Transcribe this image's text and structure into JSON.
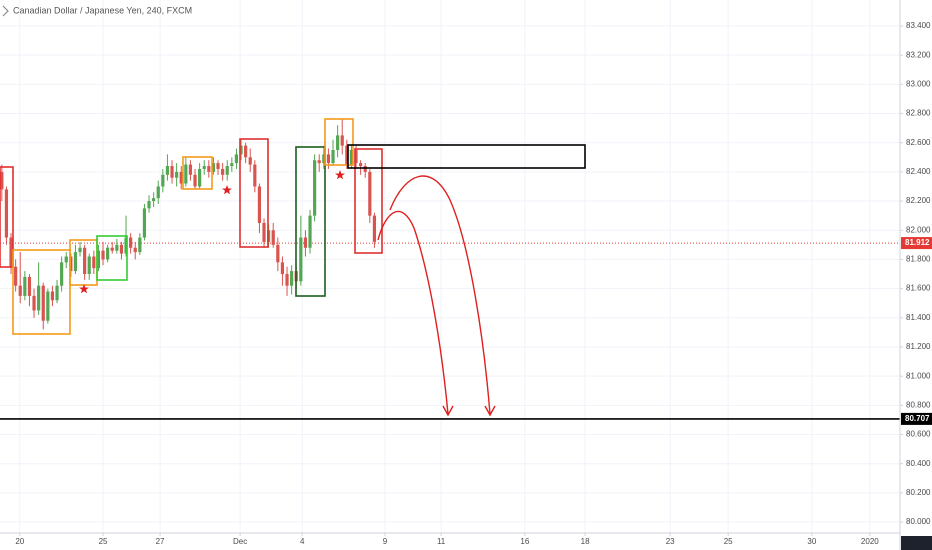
{
  "chart_data": {
    "type": "candlestick",
    "title": "Canadian Dollar / Japanese Yen, 240, FXCM",
    "up_color": "#53a653",
    "down_color": "#d9534f",
    "x": [
      0,
      1,
      2,
      3,
      4,
      5,
      6,
      7,
      8,
      9,
      10,
      11,
      12,
      13,
      14,
      15,
      16,
      17,
      18,
      19,
      20,
      21,
      22,
      23,
      24,
      25,
      26,
      27,
      28,
      29,
      30,
      31,
      32,
      33,
      34,
      35,
      36,
      37,
      38,
      39,
      40,
      41,
      42,
      43,
      44,
      45,
      46,
      47,
      48,
      49,
      50,
      51,
      52,
      53,
      54,
      55,
      56,
      57,
      58,
      59,
      60,
      61,
      62,
      63,
      64,
      65,
      66,
      67,
      68,
      69,
      70,
      71,
      72,
      73,
      74,
      75,
      76,
      77,
      78,
      79,
      80,
      81
    ],
    "open": [
      82.4,
      82.28,
      81.95,
      81.75,
      81.62,
      81.55,
      81.68,
      81.55,
      81.45,
      81.62,
      81.38,
      81.58,
      81.52,
      81.62,
      81.78,
      81.82,
      81.72,
      81.85,
      81.88,
      81.7,
      81.82,
      81.74,
      81.86,
      81.8,
      81.88,
      81.86,
      81.9,
      81.84,
      81.95,
      81.88,
      81.85,
      81.95,
      82.15,
      82.2,
      82.22,
      82.3,
      82.38,
      82.44,
      82.36,
      82.4,
      82.32,
      82.45,
      82.38,
      82.3,
      82.42,
      82.44,
      82.4,
      82.46,
      82.42,
      82.38,
      82.44,
      82.46,
      82.52,
      82.58,
      82.5,
      82.45,
      82.3,
      82.05,
      81.92,
      82.0,
      81.9,
      81.78,
      81.7,
      81.62,
      81.72,
      81.65,
      81.95,
      81.88,
      82.1,
      82.48,
      82.46,
      82.52,
      82.46,
      82.55,
      82.65,
      82.58,
      82.45,
      82.55,
      82.46,
      82.44,
      82.4,
      82.1
    ],
    "high": [
      82.45,
      82.3,
      81.98,
      81.8,
      81.85,
      81.72,
      81.7,
      81.6,
      81.78,
      81.64,
      81.6,
      81.62,
      81.66,
      81.82,
      81.85,
      81.84,
      81.9,
      81.92,
      81.9,
      81.84,
      81.86,
      81.9,
      81.92,
      81.9,
      81.92,
      81.94,
      81.92,
      82.1,
      81.98,
      81.92,
      81.98,
      82.18,
      82.24,
      82.26,
      82.34,
      82.42,
      82.52,
      82.48,
      82.46,
      82.44,
      82.5,
      82.48,
      82.42,
      82.46,
      82.48,
      82.48,
      82.5,
      82.48,
      82.46,
      82.48,
      82.5,
      82.56,
      82.62,
      82.6,
      82.56,
      82.48,
      82.32,
      82.08,
      82.04,
      82.05,
      81.95,
      81.82,
      81.75,
      81.76,
      81.75,
      82.1,
      82.0,
      82.14,
      82.52,
      82.52,
      82.58,
      82.56,
      82.62,
      82.72,
      82.76,
      82.62,
      82.58,
      82.58,
      82.48,
      82.46,
      82.42,
      82.12
    ],
    "low": [
      82.2,
      81.9,
      81.7,
      81.58,
      81.5,
      81.52,
      81.48,
      81.4,
      81.42,
      81.32,
      81.36,
      81.48,
      81.5,
      81.58,
      81.74,
      81.68,
      81.7,
      81.82,
      81.66,
      81.66,
      81.7,
      81.72,
      81.76,
      81.78,
      81.84,
      81.84,
      81.8,
      81.82,
      81.84,
      81.8,
      81.83,
      81.93,
      82.12,
      82.16,
      82.18,
      82.26,
      82.34,
      82.32,
      82.3,
      82.28,
      82.3,
      82.34,
      82.28,
      82.28,
      82.38,
      82.36,
      82.38,
      82.38,
      82.34,
      82.34,
      82.4,
      82.42,
      82.48,
      82.46,
      82.4,
      82.26,
      81.98,
      81.88,
      81.88,
      81.88,
      81.72,
      81.62,
      81.55,
      81.56,
      81.6,
      81.62,
      81.82,
      81.84,
      82.06,
      82.4,
      82.42,
      82.42,
      82.44,
      82.5,
      82.52,
      82.42,
      82.42,
      82.42,
      82.38,
      82.36,
      82.05,
      81.88
    ],
    "close": [
      82.28,
      81.95,
      81.75,
      81.62,
      81.55,
      81.68,
      81.55,
      81.45,
      81.62,
      81.38,
      81.58,
      81.52,
      81.62,
      81.78,
      81.82,
      81.72,
      81.85,
      81.88,
      81.7,
      81.82,
      81.74,
      81.86,
      81.8,
      81.88,
      81.86,
      81.9,
      81.84,
      81.95,
      81.88,
      81.85,
      81.95,
      82.15,
      82.2,
      82.22,
      82.3,
      82.38,
      82.44,
      82.36,
      82.4,
      82.32,
      82.45,
      82.38,
      82.3,
      82.42,
      82.44,
      82.4,
      82.46,
      82.42,
      82.38,
      82.44,
      82.46,
      82.52,
      82.58,
      82.5,
      82.45,
      82.3,
      82.05,
      81.92,
      82.0,
      81.9,
      81.78,
      81.7,
      81.62,
      81.72,
      81.65,
      81.95,
      81.88,
      82.1,
      82.48,
      82.46,
      82.52,
      82.46,
      82.55,
      82.65,
      82.58,
      82.45,
      82.55,
      82.46,
      82.44,
      82.4,
      82.1,
      81.92
    ],
    "xlim": [
      -0.4,
      195.26
    ],
    "xticks": [
      {
        "value": 3.9,
        "label": "20"
      },
      {
        "value": 22.0,
        "label": "25"
      },
      {
        "value": 34.4,
        "label": "27"
      },
      {
        "value": 51.8,
        "label": "Dec"
      },
      {
        "value": 65.3,
        "label": "4"
      },
      {
        "value": 83.3,
        "label": "9"
      },
      {
        "value": 95.5,
        "label": "11"
      },
      {
        "value": 113.7,
        "label": "16"
      },
      {
        "value": 126.8,
        "label": "18"
      },
      {
        "value": 145.3,
        "label": "23"
      },
      {
        "value": 157.9,
        "label": "25"
      },
      {
        "value": 176.1,
        "label": "30"
      },
      {
        "value": 188.7,
        "label": "2020"
      }
    ],
    "ylim": [
      79.925,
      83.578
    ],
    "yticks": [
      {
        "value": 80.0,
        "label": "80.000"
      },
      {
        "value": 80.2,
        "label": "80.200"
      },
      {
        "value": 80.4,
        "label": "80.400"
      },
      {
        "value": 80.6,
        "label": "80.600"
      },
      {
        "value": 80.8,
        "label": "80.800"
      },
      {
        "value": 81.0,
        "label": "81.000"
      },
      {
        "value": 81.2,
        "label": "81.200"
      },
      {
        "value": 81.4,
        "label": "81.400"
      },
      {
        "value": 81.6,
        "label": "81.600"
      },
      {
        "value": 81.8,
        "label": "81.800"
      },
      {
        "value": 82.0,
        "label": "82.000"
      },
      {
        "value": 82.2,
        "label": "82.200"
      },
      {
        "value": 82.4,
        "label": "82.400"
      },
      {
        "value": 82.6,
        "label": "82.600"
      },
      {
        "value": 82.8,
        "label": "82.800"
      },
      {
        "value": 83.0,
        "label": "83.000"
      },
      {
        "value": 83.2,
        "label": "83.200"
      },
      {
        "value": 83.4,
        "label": "83.400"
      }
    ],
    "grid": true,
    "last_price": 81.912,
    "last_price_color": "#e53935",
    "level": 80.707,
    "level_color": "#000000"
  }
}
